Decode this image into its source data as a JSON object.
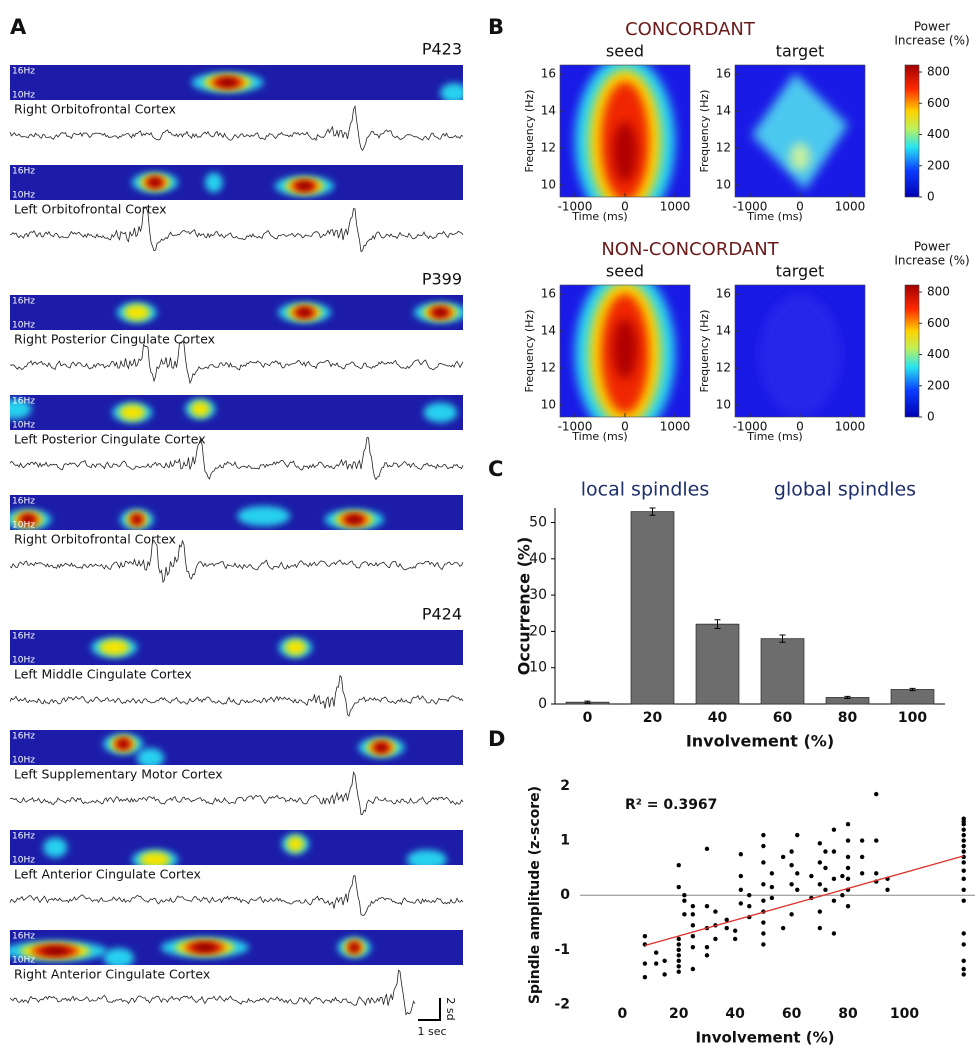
{
  "panel_labels": [
    "A",
    "B",
    "C",
    "D"
  ],
  "panel_a": {
    "freq_labels": [
      "16Hz",
      "10Hz"
    ],
    "recordings": [
      {
        "patient": "P423",
        "channels": [
          "Right Orbitofrontal Cortex",
          "Left Orbitofrontal Cortex"
        ]
      },
      {
        "patient": "P399",
        "channels": [
          "Right Posterior Cingulate Cortex",
          "Left Posterior Cingulate Cortex",
          "Right Orbitofrontal Cortex"
        ]
      },
      {
        "patient": "P424",
        "channels": [
          "Left Middle Cingulate Cortex",
          "Left Supplementary Motor Cortex",
          "Left Anterior Cingulate Cortex",
          "Right Anterior Cingulate Cortex"
        ]
      }
    ],
    "scale_time": "1 sec",
    "scale_amplitude": "2 sd"
  },
  "panel_b": {
    "conditions": [
      {
        "title": "CONCORDANT",
        "maps": [
          "seed",
          "target"
        ]
      },
      {
        "title": "NON-CONCORDANT",
        "maps": [
          "seed",
          "target"
        ]
      }
    ],
    "ylabel": "Frequency (Hz)",
    "xlabel": "Time (ms)",
    "xlim": [
      -1300,
      1300
    ],
    "xticks": [
      -1000,
      0,
      1000
    ],
    "ylim": [
      9.35,
      16.5
    ],
    "yticks": [
      10,
      12,
      14,
      16
    ],
    "colorbar_title": [
      "Power",
      "Increase (%)"
    ],
    "colorbar_lim": [
      0,
      845
    ],
    "colorbar_ticks": [
      0,
      200,
      400,
      600,
      800
    ]
  },
  "chart_data": [
    {
      "type": "bar",
      "annotations": [
        "local spindles",
        "global spindles"
      ],
      "xlabel": "Involvement (%)",
      "ylabel": "Occurrence (%)",
      "categories": [
        "0",
        "20",
        "40",
        "60",
        "80",
        "100"
      ],
      "values": [
        0.5,
        53,
        22,
        18,
        1.8,
        4
      ],
      "errors": [
        0.3,
        1,
        1.2,
        1,
        0.3,
        0.3
      ],
      "color": "#6d6d6d",
      "ylim": [
        0,
        54
      ],
      "yticks": [
        0,
        10,
        20,
        30,
        40,
        50
      ]
    },
    {
      "type": "scatter",
      "annotation": "R² = 0.3967",
      "xlabel": "Involvement (%)",
      "ylabel": "Spindle amplitude (z-score)",
      "x": [
        8,
        8,
        8,
        8,
        12,
        12,
        15,
        15,
        20,
        20,
        20,
        20,
        20,
        20,
        20,
        20,
        20,
        22,
        22,
        22,
        25,
        25,
        25,
        25,
        25,
        25,
        30,
        30,
        30,
        30,
        30,
        33,
        33,
        33,
        37,
        37,
        40,
        40,
        42,
        42,
        42,
        42,
        45,
        45,
        45,
        50,
        50,
        50,
        50,
        50,
        50,
        50,
        50,
        50,
        53,
        53,
        53,
        57,
        57,
        60,
        60,
        60,
        60,
        62,
        62,
        62,
        67,
        67,
        70,
        70,
        70,
        70,
        70,
        72,
        72,
        72,
        75,
        75,
        75,
        75,
        75,
        78,
        78,
        80,
        80,
        80,
        80,
        80,
        80,
        80,
        85,
        85,
        85,
        90,
        90,
        90,
        90,
        94,
        94,
        121,
        121,
        121,
        121,
        121,
        121,
        121,
        121,
        121,
        121,
        121,
        121,
        121,
        121,
        121,
        121,
        121,
        121,
        121
      ],
      "y": [
        -0.75,
        -0.9,
        -1.25,
        -1.5,
        -1.05,
        -1.25,
        -1.2,
        -1.45,
        0.55,
        0.15,
        -0.8,
        -0.9,
        -1.0,
        -1.1,
        -1.2,
        -1.3,
        -1.4,
        0.0,
        -0.1,
        -0.35,
        -0.2,
        -0.35,
        -0.55,
        -0.75,
        -0.95,
        -1.35,
        0.85,
        -0.2,
        -0.6,
        -0.95,
        -1.1,
        -0.3,
        -0.55,
        -0.8,
        -0.45,
        -0.6,
        -0.65,
        -0.8,
        0.75,
        0.35,
        0.1,
        -0.15,
        0.0,
        -0.2,
        -0.4,
        1.1,
        0.9,
        0.6,
        0.2,
        -0.1,
        -0.3,
        -0.5,
        -0.7,
        -0.9,
        0.4,
        0.15,
        -0.05,
        0.7,
        -0.6,
        0.8,
        0.55,
        0.2,
        -0.35,
        1.1,
        0.4,
        0.1,
        0.35,
        -0.05,
        0.95,
        0.6,
        0.2,
        -0.3,
        -0.6,
        0.8,
        0.5,
        0.1,
        1.2,
        0.8,
        0.3,
        -0.1,
        -0.7,
        0.35,
        0.0,
        1.3,
        1.0,
        0.7,
        0.5,
        0.3,
        0.1,
        -0.2,
        1.0,
        0.7,
        0.4,
        1.85,
        1.0,
        0.4,
        0.25,
        0.3,
        0.1,
        1.4,
        1.35,
        1.3,
        1.2,
        1.1,
        1.0,
        0.9,
        0.8,
        0.7,
        0.6,
        0.45,
        0.3,
        0.1,
        -0.1,
        -0.7,
        -0.9,
        -1.2,
        -1.35,
        -1.45
      ],
      "color": "#000000",
      "fit": {
        "x": [
          8,
          121
        ],
        "y": [
          -0.92,
          0.72
        ],
        "color": "#e0302a"
      },
      "xlim": [
        -15,
        125
      ],
      "xticks": [
        0,
        20,
        40,
        60,
        80,
        100
      ],
      "ylim": [
        -2.1,
        2.2
      ],
      "yticks": [
        -2,
        -1,
        0,
        1,
        2
      ]
    }
  ]
}
